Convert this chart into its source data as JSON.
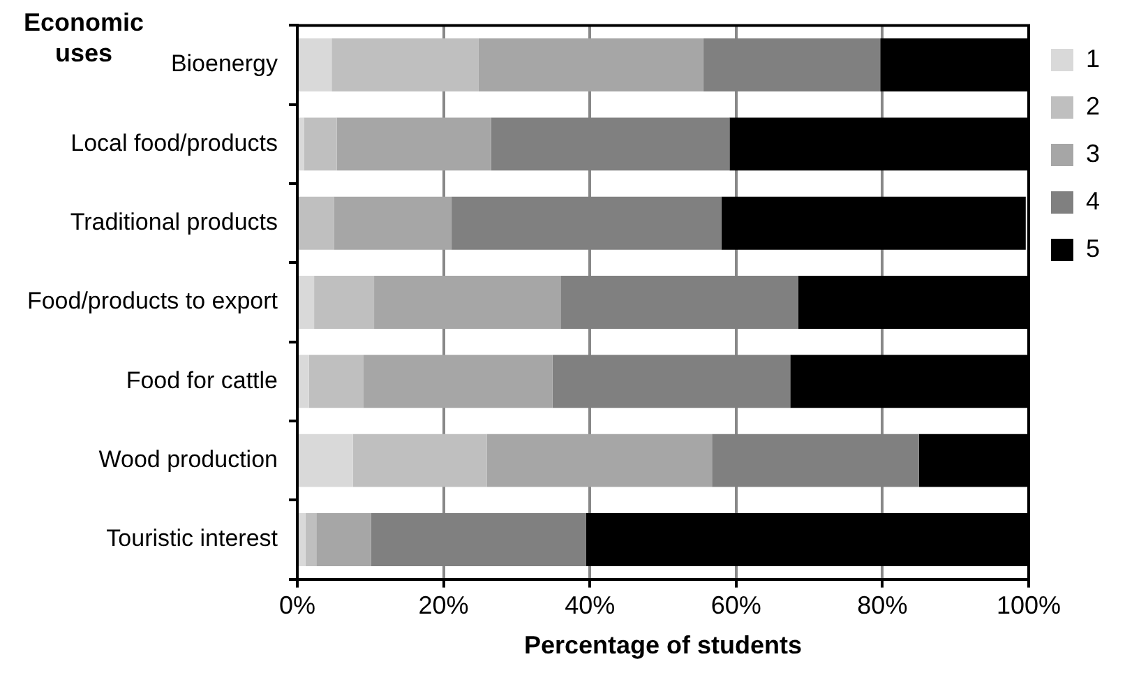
{
  "chart_data": {
    "type": "bar",
    "orientation": "horizontal",
    "stacked": true,
    "xlabel": "Percentage of students",
    "ylabel": "Economic uses",
    "categories": [
      "Bioenergy",
      "Local food/products",
      "Traditional products",
      "Food/products to export",
      "Food for cattle",
      "Wood production",
      "Touristic interest"
    ],
    "series": [
      {
        "name": "1",
        "color": "#d9d9d9",
        "values": [
          4.7,
          0.9,
          null,
          2.3,
          1.6,
          7.6,
          1.1
        ]
      },
      {
        "name": "2",
        "color": "#bfbfbf",
        "values": [
          20.1,
          4.5,
          5.0,
          8.2,
          7.4,
          18.3,
          1.5
        ]
      },
      {
        "name": "3",
        "color": "#a6a6a6",
        "values": [
          30.7,
          21.1,
          16.1,
          25.5,
          25.9,
          30.8,
          7.5
        ]
      },
      {
        "name": "4",
        "color": "#808080",
        "values": [
          24.2,
          32.6,
          36.9,
          32.5,
          32.5,
          28.3,
          29.4
        ]
      },
      {
        "name": "5",
        "color": "#000000",
        "values": [
          20.3,
          40.9,
          41.6,
          31.5,
          32.6,
          15.0,
          60.5
        ]
      }
    ],
    "xlim": [
      0,
      100
    ],
    "xticks": [
      {
        "value": 0,
        "label": "0%"
      },
      {
        "value": 20,
        "label": "20%"
      },
      {
        "value": 40,
        "label": "40%"
      },
      {
        "value": 60,
        "label": "60%"
      },
      {
        "value": 80,
        "label": "80%"
      },
      {
        "value": 100,
        "label": "100%"
      }
    ],
    "grid": "x",
    "legend": "top right"
  }
}
